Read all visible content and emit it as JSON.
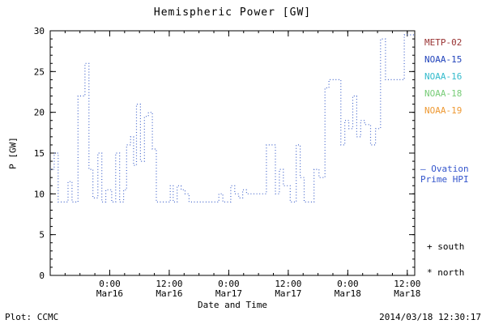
{
  "chart_data": {
    "type": "line",
    "style": "dotted-step",
    "title": "Hemispheric Power [GW]",
    "xlabel": "Date and Time",
    "ylabel": "P [GW]",
    "ylim": [
      0,
      30
    ],
    "y_major_ticks": [
      0,
      5,
      10,
      15,
      20,
      25,
      30
    ],
    "y_minor_step": 1,
    "x_hours_range": [
      0,
      73.5
    ],
    "x_minor_step_hours": 3,
    "grid": false,
    "line_color": "#4466cc",
    "x_major_ticks": [
      {
        "hour": 12,
        "time": "0:00",
        "date": "Mar16"
      },
      {
        "hour": 24,
        "time": "12:00",
        "date": "Mar16"
      },
      {
        "hour": 36,
        "time": "0:00",
        "date": "Mar17"
      },
      {
        "hour": 48,
        "time": "12:00",
        "date": "Mar17"
      },
      {
        "hour": 60,
        "time": "0:00",
        "date": "Mar18"
      },
      {
        "hour": 72,
        "time": "12:00",
        "date": "Mar18"
      }
    ],
    "series": [
      {
        "name": "Hemispheric Power HPI",
        "points": [
          [
            0,
            13
          ],
          [
            0.8,
            15
          ],
          [
            1.6,
            9
          ],
          [
            3.6,
            11.5
          ],
          [
            4.4,
            9
          ],
          [
            5.6,
            22
          ],
          [
            7.0,
            26
          ],
          [
            7.8,
            13
          ],
          [
            8.6,
            9.5
          ],
          [
            9.6,
            15
          ],
          [
            10.4,
            9
          ],
          [
            11.2,
            10.5
          ],
          [
            12.4,
            9
          ],
          [
            13.2,
            15
          ],
          [
            14.0,
            9
          ],
          [
            14.8,
            10.5
          ],
          [
            15.4,
            16
          ],
          [
            16.2,
            17
          ],
          [
            16.8,
            13.5
          ],
          [
            17.4,
            21
          ],
          [
            18.2,
            14
          ],
          [
            19.0,
            19.5
          ],
          [
            19.8,
            20
          ],
          [
            20.6,
            15.5
          ],
          [
            21.4,
            9
          ],
          [
            24.2,
            11
          ],
          [
            24.8,
            9
          ],
          [
            25.6,
            11
          ],
          [
            26.4,
            10.5
          ],
          [
            27.2,
            10
          ],
          [
            28.0,
            9
          ],
          [
            34.0,
            10
          ],
          [
            34.8,
            9
          ],
          [
            36.4,
            11
          ],
          [
            37.2,
            10
          ],
          [
            38.0,
            9.5
          ],
          [
            38.8,
            10.5
          ],
          [
            39.6,
            10
          ],
          [
            43.6,
            16
          ],
          [
            45.4,
            10
          ],
          [
            46.2,
            13
          ],
          [
            47.0,
            11
          ],
          [
            48.4,
            9
          ],
          [
            49.6,
            16
          ],
          [
            50.4,
            12
          ],
          [
            51.2,
            9
          ],
          [
            53.2,
            13
          ],
          [
            54.2,
            12
          ],
          [
            55.4,
            23
          ],
          [
            56.2,
            24
          ],
          [
            58.6,
            16
          ],
          [
            59.4,
            19
          ],
          [
            60.2,
            18
          ],
          [
            61.0,
            22
          ],
          [
            61.8,
            17
          ],
          [
            62.6,
            19
          ],
          [
            63.4,
            18.5
          ],
          [
            64.6,
            16
          ],
          [
            65.6,
            18
          ],
          [
            66.6,
            29
          ],
          [
            67.6,
            24
          ],
          [
            71.4,
            29.5
          ]
        ]
      }
    ]
  },
  "legend": {
    "items": [
      {
        "label": "METP-02",
        "color": "#993333"
      },
      {
        "label": "NOAA-15",
        "color": "#2244bb"
      },
      {
        "label": "NOAA-16",
        "color": "#33bbcc"
      },
      {
        "label": "NOAA-18",
        "color": "#77cc77"
      },
      {
        "label": "NOAA-19",
        "color": "#ee9933"
      }
    ],
    "ovation": {
      "line1": "— Ovation",
      "line2": "Prime HPI",
      "color": "#3355cc"
    },
    "south": "+ south",
    "north": "* north"
  },
  "footer": {
    "left": "Plot: CCMC",
    "right": "2014/03/18 12:30:17"
  }
}
